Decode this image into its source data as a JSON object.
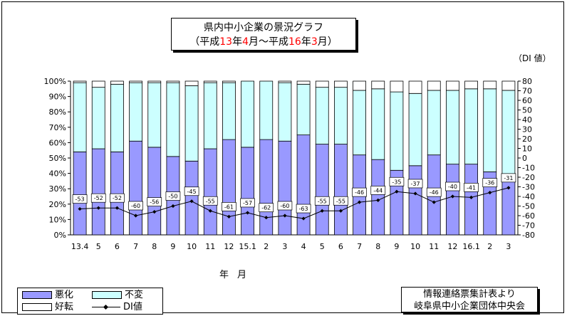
{
  "title_line1": "県内中小企業の景況グラフ",
  "title_line2": {
    "p1": "（平成",
    "y1": "13",
    "p2": "年",
    "m1": "4",
    "p3": "月～平成",
    "y2": "16",
    "p4": "年",
    "m2": "3",
    "p5": "月）"
  },
  "di_unit_label": "（DI 値）",
  "x_axis_title": "年月",
  "legend": {
    "worse": "悪化",
    "unchanged": "不変",
    "better": "好転",
    "di": "DI値"
  },
  "source": {
    "line1": "情報連絡票集計表より",
    "line2": "岐阜県中小企業団体中央会"
  },
  "colors": {
    "worse": "#9999ff",
    "unchanged": "#ccffff",
    "better": "#ffffff",
    "di_line": "#000000"
  },
  "chart_data": {
    "type": "bar",
    "stacked": true,
    "categories": [
      "13.4",
      "5",
      "6",
      "7",
      "8",
      "9",
      "10",
      "11",
      "12",
      "15.1",
      "2",
      "3",
      "4",
      "5",
      "6",
      "7",
      "8",
      "9",
      "10",
      "11",
      "12",
      "16.1",
      "2",
      "3"
    ],
    "series": [
      {
        "name": "好転",
        "values": [
          1,
          4,
          2,
          1,
          1,
          1,
          3,
          1,
          1,
          0,
          0,
          1,
          2,
          4,
          4,
          6,
          5,
          7,
          8,
          6,
          6,
          5,
          5,
          6
        ]
      },
      {
        "name": "悪化",
        "values": [
          54,
          56,
          54,
          61,
          57,
          51,
          48,
          56,
          62,
          57,
          62,
          61,
          65,
          59,
          59,
          52,
          49,
          42,
          45,
          52,
          46,
          46,
          41,
          37
        ]
      },
      {
        "name": "不変",
        "values": [
          45,
          40,
          44,
          38,
          42,
          48,
          49,
          43,
          37,
          43,
          38,
          38,
          33,
          37,
          37,
          42,
          46,
          51,
          47,
          42,
          48,
          49,
          54,
          57
        ]
      },
      {
        "name": "DI値",
        "values": [
          -53,
          -52,
          -52,
          -60,
          -56,
          -50,
          -45,
          -55,
          -61,
          -57,
          -62,
          -60,
          -63,
          -55,
          -55,
          -46,
          -44,
          -35,
          -37,
          -46,
          -40,
          -41,
          -36,
          -31
        ]
      }
    ],
    "y_left": {
      "min": 0,
      "max": 100,
      "step": 10,
      "unit": "%"
    },
    "y_right": {
      "min": -80,
      "max": 80,
      "step": 10
    },
    "grid": false,
    "legend_position": "bottom-left"
  }
}
